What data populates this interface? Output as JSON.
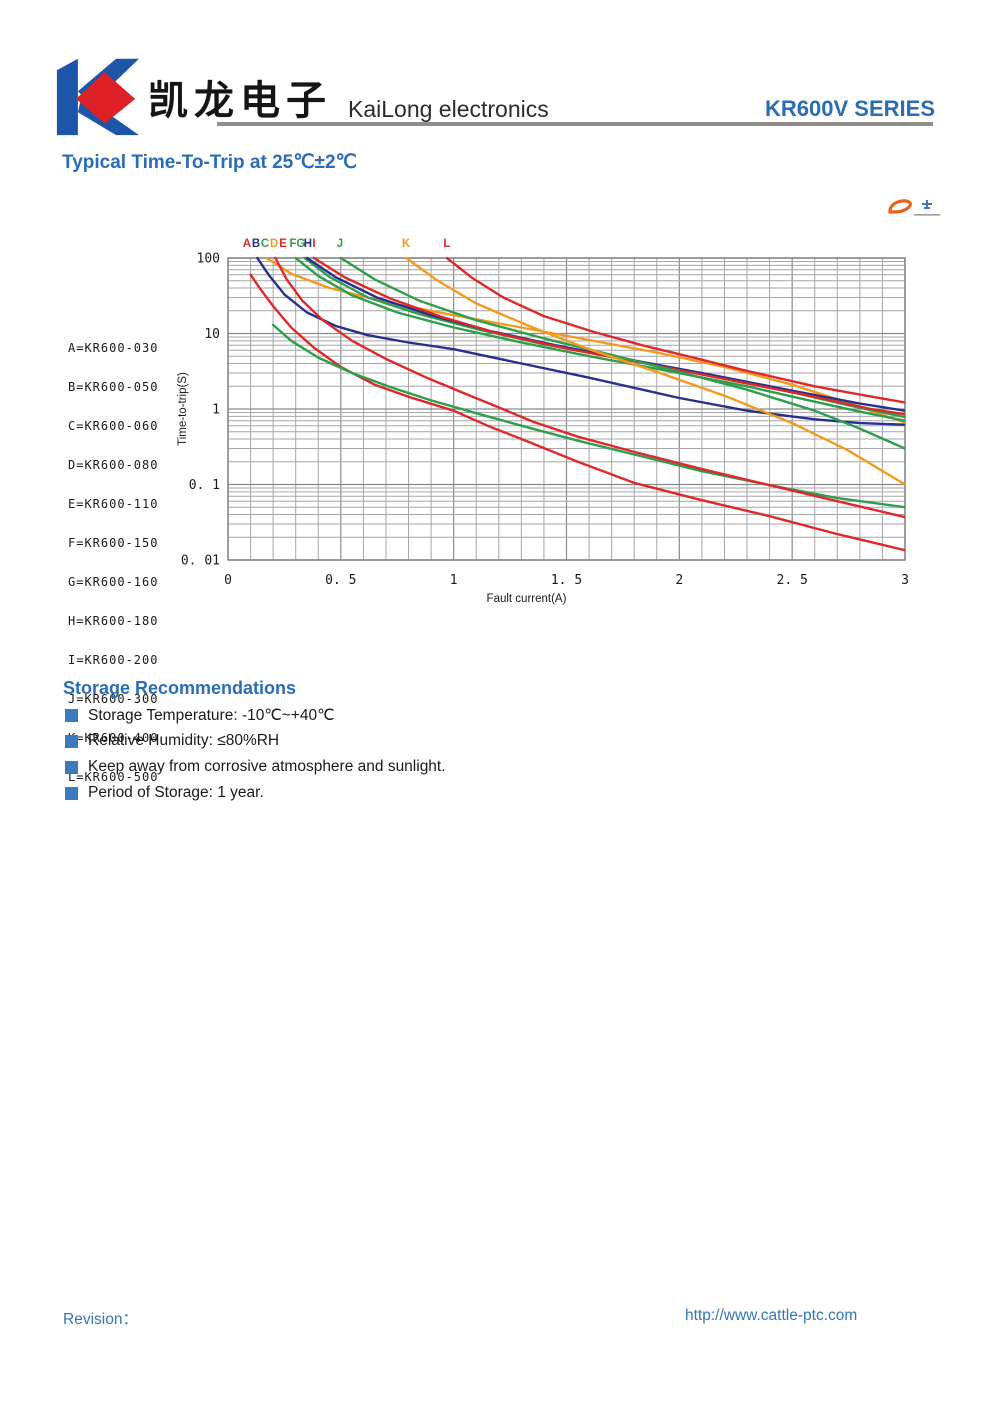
{
  "header": {
    "company_cn": "凯龙电子",
    "company_en": "KaiLong electronics",
    "series_title": "KR600V SERIES"
  },
  "colors": {
    "accent_blue": "#2a6db6",
    "logo_blue": "#1d56a8",
    "logo_red": "#dd1f26",
    "rule_gray": "#8e8e8e",
    "grid_minor": "#a6a6a6",
    "grid_major": "#8b8b8b",
    "bullet_blue": "#3b7abc",
    "footer_blue": "#3575b5"
  },
  "icons": {
    "logo": "kailong-k-diamond-logo",
    "bullet": "blue-square-bullet",
    "watermark": "orange-swoosh-plane-watermark"
  },
  "chart_data": {
    "type": "line",
    "title": "Typical Time-To-Trip at 25℃±2℃",
    "xlabel": "Fault current(A)",
    "ylabel": "Time-to-trip(S)",
    "xlim": [
      0,
      3
    ],
    "ylim": [
      0.01,
      100
    ],
    "y_scale": "log",
    "x_minor_step": 0.1,
    "x_major_step": 0.5,
    "grid": true,
    "legend_position": "left",
    "x_ticks": [
      {
        "v": 0,
        "label": "0"
      },
      {
        "v": 0.5,
        "label": "0. 5"
      },
      {
        "v": 1,
        "label": "1"
      },
      {
        "v": 1.5,
        "label": "1. 5"
      },
      {
        "v": 2,
        "label": "2"
      },
      {
        "v": 2.5,
        "label": "2. 5"
      },
      {
        "v": 3,
        "label": "3"
      }
    ],
    "y_ticks": [
      {
        "v": 100,
        "label": "100"
      },
      {
        "v": 10,
        "label": "10"
      },
      {
        "v": 1,
        "label": "1"
      },
      {
        "v": 0.1,
        "label": "0. 1"
      },
      {
        "v": 0.01,
        "label": "0. 01"
      }
    ],
    "series": [
      {
        "letter": "A",
        "legend": "A=KR600-030",
        "name": "KR600-030",
        "color": "#de282b",
        "letter_x": 0.084,
        "points": [
          [
            0.1,
            60
          ],
          [
            0.14,
            40
          ],
          [
            0.2,
            23
          ],
          [
            0.28,
            12
          ],
          [
            0.38,
            6.5
          ],
          [
            0.5,
            3.6
          ],
          [
            0.65,
            2.1
          ],
          [
            0.8,
            1.45
          ],
          [
            1.0,
            0.95
          ],
          [
            1.15,
            0.6
          ],
          [
            1.3,
            0.4
          ],
          [
            1.55,
            0.2
          ],
          [
            1.8,
            0.105
          ],
          [
            2.1,
            0.062
          ],
          [
            2.4,
            0.038
          ],
          [
            2.7,
            0.022
          ],
          [
            3.0,
            0.0135
          ]
        ]
      },
      {
        "letter": "B",
        "legend": "B=KR600-050",
        "name": "KR600-050",
        "color": "#28308e",
        "letter_x": 0.124,
        "points": [
          [
            0.13,
            100
          ],
          [
            0.18,
            60
          ],
          [
            0.25,
            33
          ],
          [
            0.35,
            19
          ],
          [
            0.48,
            12.5
          ],
          [
            0.62,
            9.5
          ],
          [
            0.8,
            7.6
          ],
          [
            1.0,
            6.2
          ],
          [
            1.3,
            4.0
          ],
          [
            1.6,
            2.6
          ],
          [
            2.0,
            1.4
          ],
          [
            2.3,
            0.95
          ],
          [
            2.6,
            0.73
          ],
          [
            2.8,
            0.65
          ],
          [
            3.0,
            0.62
          ]
        ]
      },
      {
        "letter": "C",
        "legend": "C=KR600-060",
        "name": "KR600-060",
        "color": "#2d9e4b",
        "letter_x": 0.164,
        "points": [
          [
            0.2,
            13
          ],
          [
            0.28,
            8.0
          ],
          [
            0.4,
            4.8
          ],
          [
            0.55,
            3.0
          ],
          [
            0.72,
            1.95
          ],
          [
            0.9,
            1.3
          ],
          [
            1.1,
            0.88
          ],
          [
            1.3,
            0.6
          ],
          [
            1.55,
            0.38
          ],
          [
            1.8,
            0.25
          ],
          [
            2.1,
            0.15
          ],
          [
            2.4,
            0.098
          ],
          [
            2.7,
            0.066
          ],
          [
            3.0,
            0.05
          ]
        ]
      },
      {
        "letter": "D",
        "legend": "D=KR600-080",
        "name": "KR600-080",
        "color": "#f39a1e",
        "letter_x": 0.204,
        "points": [
          [
            0.17,
            100
          ],
          [
            0.28,
            62
          ],
          [
            0.45,
            40
          ],
          [
            0.7,
            26
          ],
          [
            1.0,
            17.5
          ],
          [
            1.3,
            12
          ],
          [
            1.6,
            8.2
          ],
          [
            1.9,
            5.6
          ],
          [
            2.2,
            3.6
          ],
          [
            2.5,
            2.1
          ],
          [
            2.75,
            1.2
          ],
          [
            3.0,
            0.66
          ]
        ]
      },
      {
        "letter": "E",
        "legend": "E=KR600-110",
        "name": "KR600-110",
        "color": "#de282b",
        "letter_x": 0.244,
        "points": [
          [
            0.21,
            100
          ],
          [
            0.26,
            52
          ],
          [
            0.33,
            27
          ],
          [
            0.42,
            15
          ],
          [
            0.55,
            8.0
          ],
          [
            0.7,
            4.6
          ],
          [
            0.88,
            2.6
          ],
          [
            1.05,
            1.6
          ],
          [
            1.2,
            1.05
          ],
          [
            1.35,
            0.68
          ],
          [
            1.55,
            0.43
          ],
          [
            1.8,
            0.27
          ],
          [
            2.1,
            0.16
          ],
          [
            2.4,
            0.098
          ],
          [
            2.7,
            0.06
          ],
          [
            3.0,
            0.037
          ]
        ]
      },
      {
        "letter": "F",
        "legend": "F=KR600-150",
        "name": "KR600-150",
        "color": "#2d9e4b",
        "letter_x": 0.288,
        "points": [
          [
            0.3,
            100
          ],
          [
            0.4,
            58
          ],
          [
            0.55,
            32
          ],
          [
            0.75,
            19
          ],
          [
            1.0,
            12
          ],
          [
            1.3,
            7.6
          ],
          [
            1.6,
            5.0
          ],
          [
            1.95,
            3.2
          ],
          [
            2.3,
            2.0
          ],
          [
            2.6,
            1.25
          ],
          [
            2.8,
            0.92
          ],
          [
            3.0,
            0.7
          ]
        ]
      },
      {
        "letter": "G",
        "legend": "G=KR600-160",
        "name": "KR600-160",
        "color": "#2d9e4b",
        "letter_x": 0.323,
        "points": [
          [
            0.34,
            100
          ],
          [
            0.45,
            56
          ],
          [
            0.62,
            30
          ],
          [
            0.85,
            18
          ],
          [
            1.1,
            11.5
          ],
          [
            1.4,
            7.2
          ],
          [
            1.75,
            4.6
          ],
          [
            2.1,
            2.9
          ],
          [
            2.45,
            1.8
          ],
          [
            2.75,
            1.12
          ],
          [
            3.0,
            0.78
          ]
        ]
      },
      {
        "letter": "H",
        "legend": "H=KR600-180",
        "name": "KR600-180",
        "color": "#28308e",
        "letter_x": 0.354,
        "points": [
          [
            0.35,
            100
          ],
          [
            0.48,
            55
          ],
          [
            0.66,
            30
          ],
          [
            0.9,
            17.5
          ],
          [
            1.15,
            11
          ],
          [
            1.45,
            7.0
          ],
          [
            1.8,
            4.4
          ],
          [
            2.15,
            2.8
          ],
          [
            2.5,
            1.75
          ],
          [
            2.8,
            1.18
          ],
          [
            3.0,
            0.95
          ]
        ]
      },
      {
        "letter": "I",
        "legend": "I=KR600-200",
        "name": "KR600-200",
        "color": "#de282b",
        "letter_x": 0.381,
        "points": [
          [
            0.38,
            100
          ],
          [
            0.52,
            55
          ],
          [
            0.72,
            29
          ],
          [
            0.95,
            16.5
          ],
          [
            1.2,
            10
          ],
          [
            1.5,
            6.3
          ],
          [
            1.85,
            4.0
          ],
          [
            2.2,
            2.5
          ],
          [
            2.55,
            1.55
          ],
          [
            2.85,
            1.0
          ],
          [
            3.0,
            0.85
          ]
        ]
      },
      {
        "letter": "J",
        "legend": "J=KR600-300",
        "name": "KR600-300",
        "color": "#2d9e4b",
        "letter_x": 0.496,
        "points": [
          [
            0.5,
            100
          ],
          [
            0.65,
            52
          ],
          [
            0.85,
            27
          ],
          [
            1.1,
            15
          ],
          [
            1.4,
            8.6
          ],
          [
            1.7,
            5.2
          ],
          [
            2.0,
            3.1
          ],
          [
            2.3,
            1.8
          ],
          [
            2.6,
            0.95
          ],
          [
            2.8,
            0.55
          ],
          [
            3.0,
            0.3
          ]
        ]
      },
      {
        "letter": "K",
        "legend": "K=KR600-400",
        "name": "KR600-400",
        "color": "#f39a1e",
        "letter_x": 0.789,
        "points": [
          [
            0.79,
            100
          ],
          [
            0.92,
            52
          ],
          [
            1.1,
            25
          ],
          [
            1.35,
            12
          ],
          [
            1.6,
            6.2
          ],
          [
            1.9,
            3.1
          ],
          [
            2.2,
            1.5
          ],
          [
            2.5,
            0.65
          ],
          [
            2.75,
            0.28
          ],
          [
            3.0,
            0.1
          ]
        ]
      },
      {
        "letter": "L",
        "legend": "L=KR600-500",
        "name": "KR600-500",
        "color": "#de282b",
        "letter_x": 0.97,
        "points": [
          [
            0.97,
            100
          ],
          [
            1.08,
            55
          ],
          [
            1.22,
            30
          ],
          [
            1.4,
            17
          ],
          [
            1.62,
            10.5
          ],
          [
            1.85,
            6.8
          ],
          [
            2.05,
            4.9
          ],
          [
            2.3,
            3.2
          ],
          [
            2.6,
            2.0
          ],
          [
            2.8,
            1.55
          ],
          [
            3.0,
            1.22
          ]
        ]
      }
    ]
  },
  "storage": {
    "heading": "Storage Recommendations",
    "items": [
      "Storage Temperature: -10℃~+40℃",
      "Relative Humidity: ≤80%RH",
      "Keep away from corrosive atmosphere and sunlight.",
      "Period of Storage: 1 year."
    ]
  },
  "footer": {
    "revision_label": "Revision：",
    "url": "http://www.cattle-ptc.com"
  }
}
